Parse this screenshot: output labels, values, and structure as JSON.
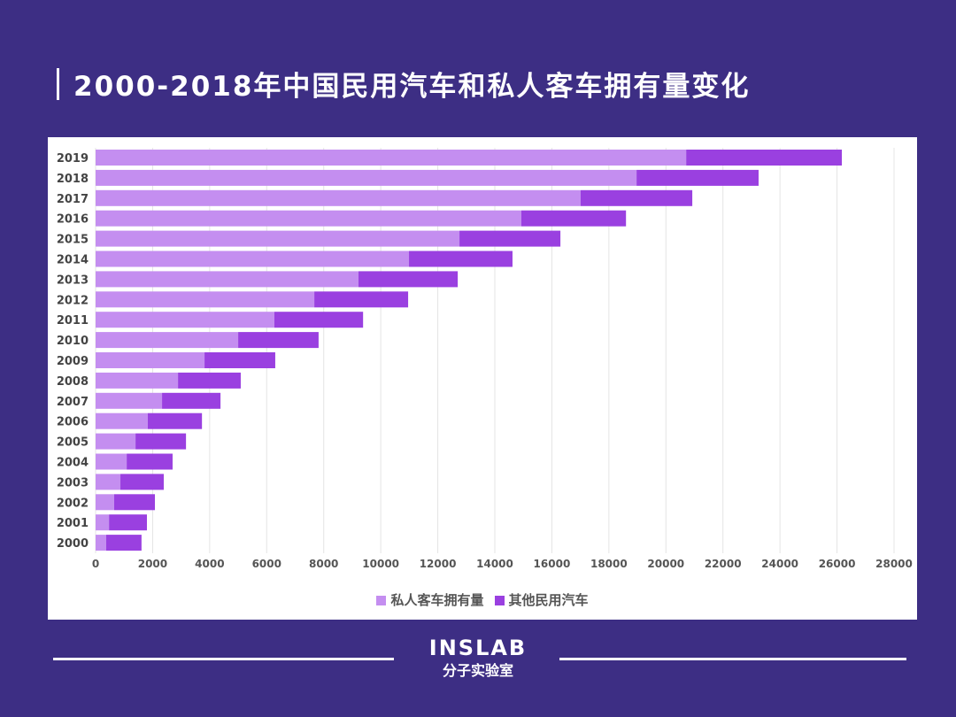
{
  "title": "2000-2018年中国民用汽车和私人客车拥有量变化",
  "logo": {
    "en": "INSLAB",
    "cn": "分子实验室"
  },
  "chart_data": {
    "type": "bar",
    "orientation": "horizontal",
    "stacked": true,
    "categories": [
      "2000",
      "2001",
      "2002",
      "2003",
      "2004",
      "2005",
      "2006",
      "2007",
      "2008",
      "2009",
      "2010",
      "2011",
      "2012",
      "2013",
      "2014",
      "2015",
      "2016",
      "2017",
      "2018",
      "2019"
    ],
    "series": [
      {
        "name": "私人客车拥有量",
        "color": "#c48ef0",
        "values": [
          370,
          470,
          650,
          870,
          1090,
          1400,
          1830,
          2330,
          2890,
          3820,
          5000,
          6270,
          7670,
          9220,
          10990,
          12760,
          14930,
          17010,
          18970,
          20710
        ]
      },
      {
        "name": "其他民用汽车",
        "color": "#9a40e0",
        "values": [
          1240,
          1330,
          1430,
          1520,
          1610,
          1770,
          1900,
          2050,
          2200,
          2480,
          2820,
          3110,
          3290,
          3480,
          3630,
          3540,
          3670,
          3915,
          4280,
          5460
        ]
      }
    ],
    "xlim": [
      0,
      28000
    ],
    "xticks": [
      "0",
      "2000",
      "4000",
      "6000",
      "8000",
      "10000",
      "12000",
      "14000",
      "16000",
      "18000",
      "20000",
      "22000",
      "24000",
      "26000",
      "28000"
    ],
    "grid": true,
    "legend": "bottom"
  }
}
